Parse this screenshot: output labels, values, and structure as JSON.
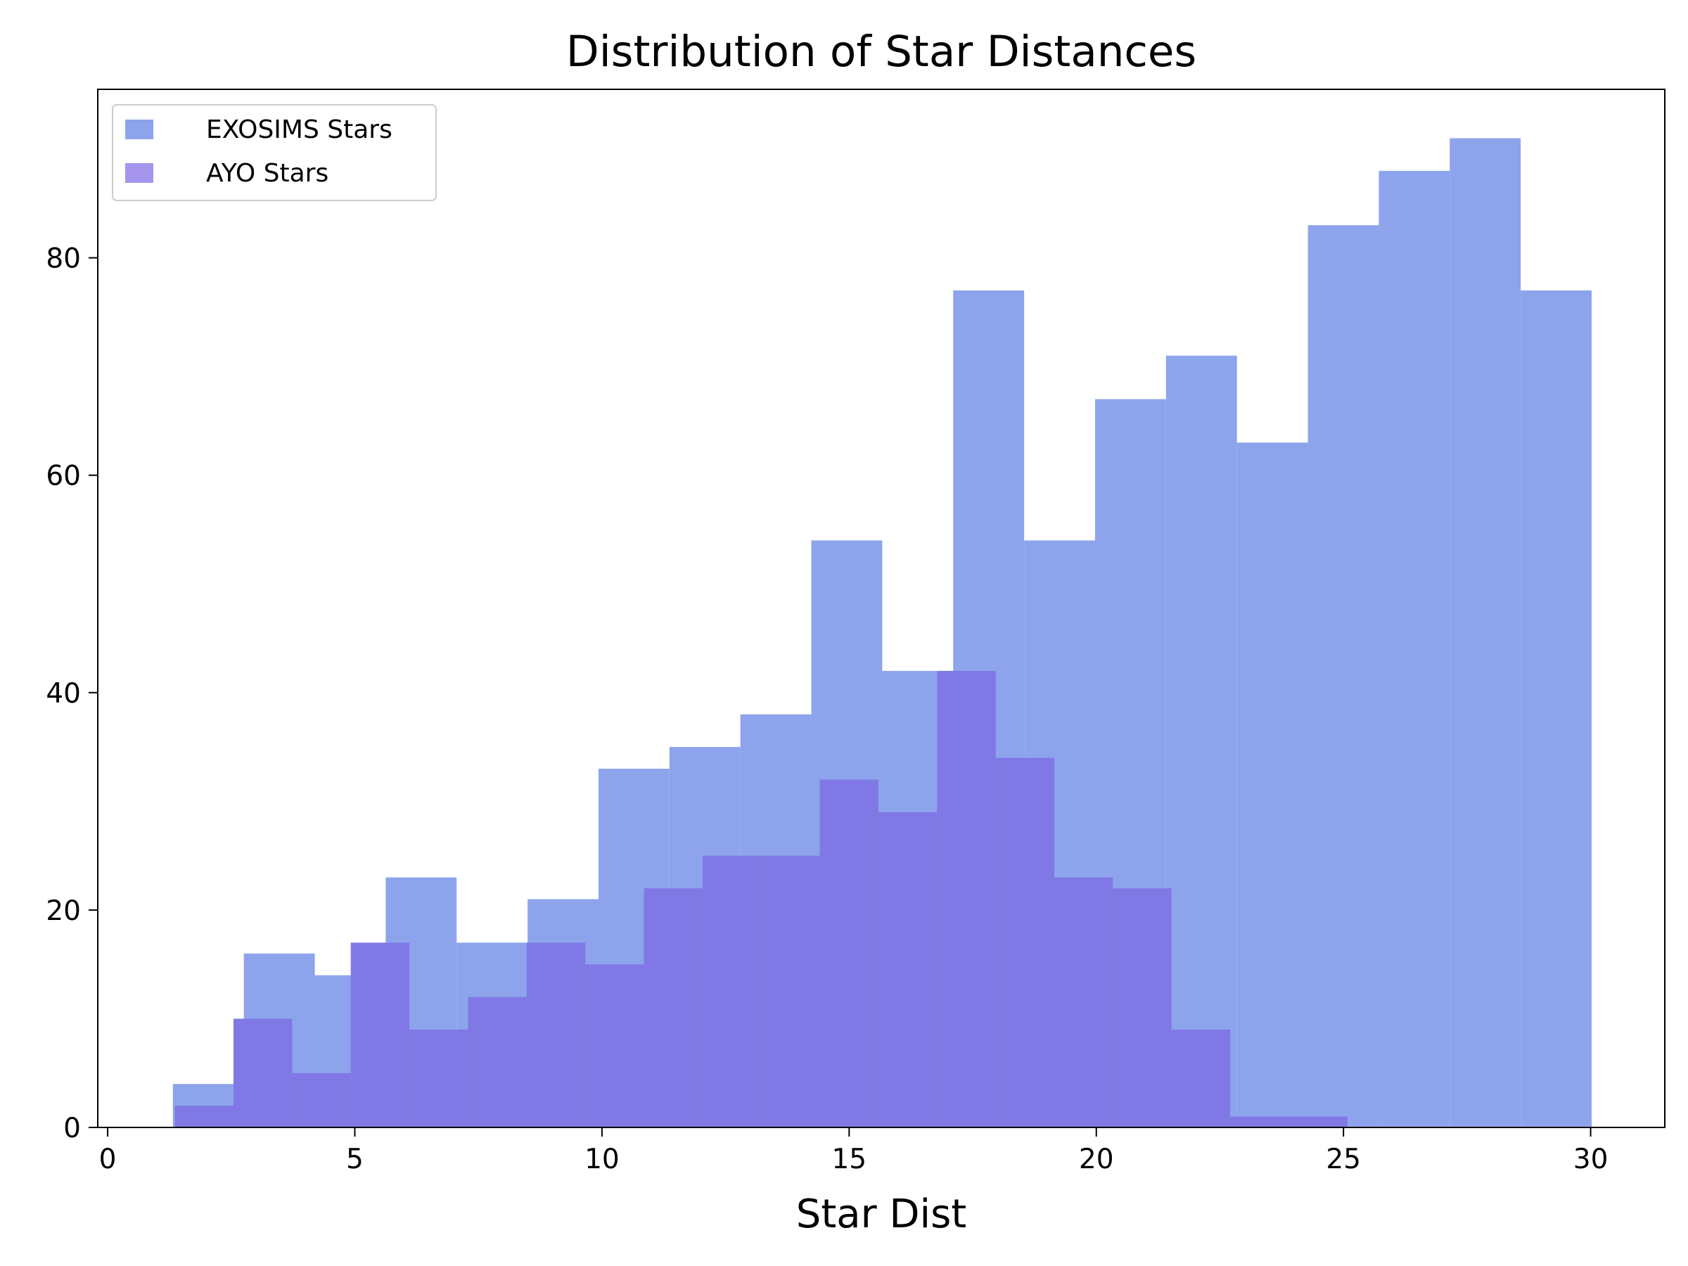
{
  "chart_data": {
    "type": "bar",
    "title": "Distribution of Star Distances",
    "xlabel": "Star Dist",
    "ylabel": "",
    "xlim": [
      -0.2,
      31.5
    ],
    "ylim": [
      0,
      95.5
    ],
    "xticks": [
      0,
      5,
      10,
      15,
      20,
      25,
      30
    ],
    "yticks": [
      0,
      20,
      40,
      60,
      80
    ],
    "legend_position": "top-left",
    "grid": false,
    "colors": {
      "exosims": "#8DA4EC",
      "ayo": "#8078E4",
      "ayo_only": "#A595EE",
      "axis": "#000000"
    },
    "series": [
      {
        "name": "EXOSIMS Stars",
        "bin_edges": [
          1.32,
          2.755,
          4.19,
          5.625,
          7.06,
          8.495,
          9.93,
          11.365,
          12.8,
          14.235,
          15.67,
          17.105,
          18.54,
          19.975,
          21.41,
          22.845,
          24.28,
          25.715,
          27.15,
          28.585,
          30.02
        ],
        "counts": [
          4,
          16,
          14,
          23,
          17,
          21,
          33,
          35,
          38,
          54,
          42,
          77,
          54,
          67,
          71,
          63,
          83,
          88,
          91,
          77
        ]
      },
      {
        "name": "AYO Stars",
        "bin_edges": [
          1.36,
          2.546,
          3.732,
          4.918,
          6.104,
          7.29,
          8.476,
          9.662,
          10.848,
          12.034,
          13.22,
          14.406,
          15.592,
          16.778,
          17.964,
          19.15,
          20.336,
          21.522,
          22.708,
          23.894,
          25.08
        ],
        "counts": [
          2,
          10,
          5,
          17,
          9,
          12,
          17,
          15,
          22,
          25,
          25,
          32,
          29,
          42,
          34,
          23,
          22,
          9,
          1,
          1
        ]
      }
    ]
  }
}
